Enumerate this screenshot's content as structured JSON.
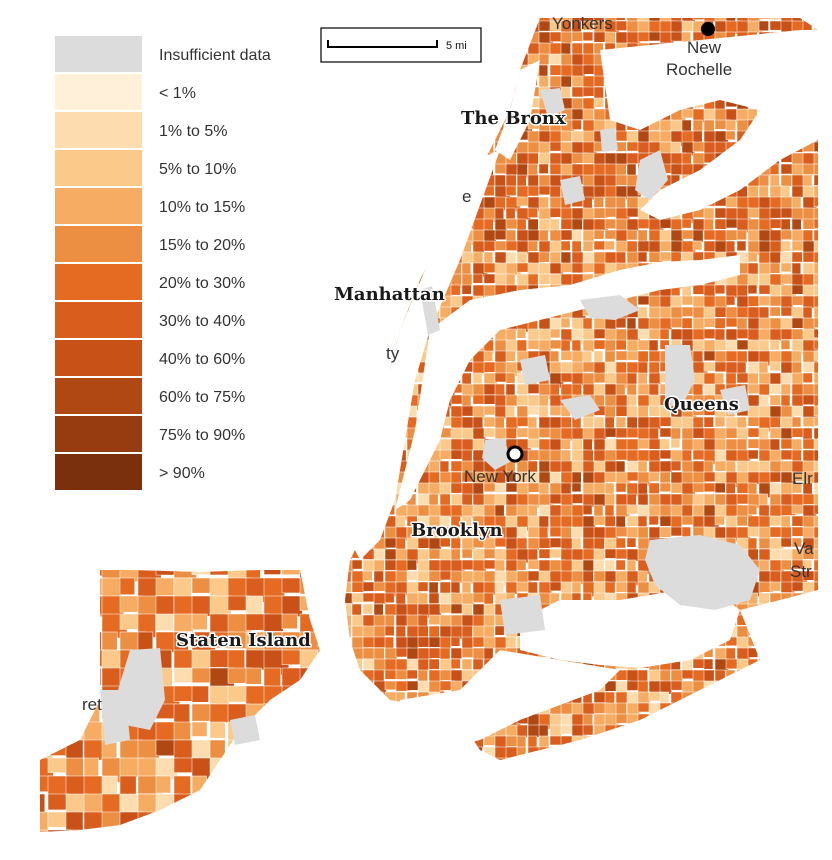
{
  "legend": {
    "items": [
      {
        "label": "Insufficient data",
        "color": "#dcdcdc"
      },
      {
        "label": "< 1%",
        "color": "#fef0d9"
      },
      {
        "label": "1% to 5%",
        "color": "#fddcb0"
      },
      {
        "label": "5% to 10%",
        "color": "#fbc98a"
      },
      {
        "label": "10% to 15%",
        "color": "#f6ad63"
      },
      {
        "label": "15% to 20%",
        "color": "#ed8f43"
      },
      {
        "label": "20% to 30%",
        "color": "#e56a22"
      },
      {
        "label": "30% to 40%",
        "color": "#d95d1c"
      },
      {
        "label": "40% to 60%",
        "color": "#c85118"
      },
      {
        "label": "60% to 75%",
        "color": "#b04814"
      },
      {
        "label": "75% to 90%",
        "color": "#963c10"
      },
      {
        "label": "> 90%",
        "color": "#7a300c"
      }
    ]
  },
  "scale_bar": {
    "label": "5 mi"
  },
  "labels": {
    "boroughs": {
      "bronx": "The Bronx",
      "manhattan": "Manhattan",
      "queens": "Queens",
      "brooklyn": "Brooklyn",
      "staten_island": "Staten Island"
    },
    "places": {
      "yonkers": "Yonkers",
      "new": "New",
      "rochelle": "Rochelle",
      "new_york": "New York",
      "e_fragment": "e",
      "ty_fragment": "ty",
      "elm_fragment": "Elr",
      "va_fragment": "Va",
      "str_fragment": "Str",
      "ret_fragment": "ret"
    }
  },
  "colors": {
    "water": "#ffffff",
    "park": "#dcdcdc",
    "boundary": "#ffffff"
  }
}
